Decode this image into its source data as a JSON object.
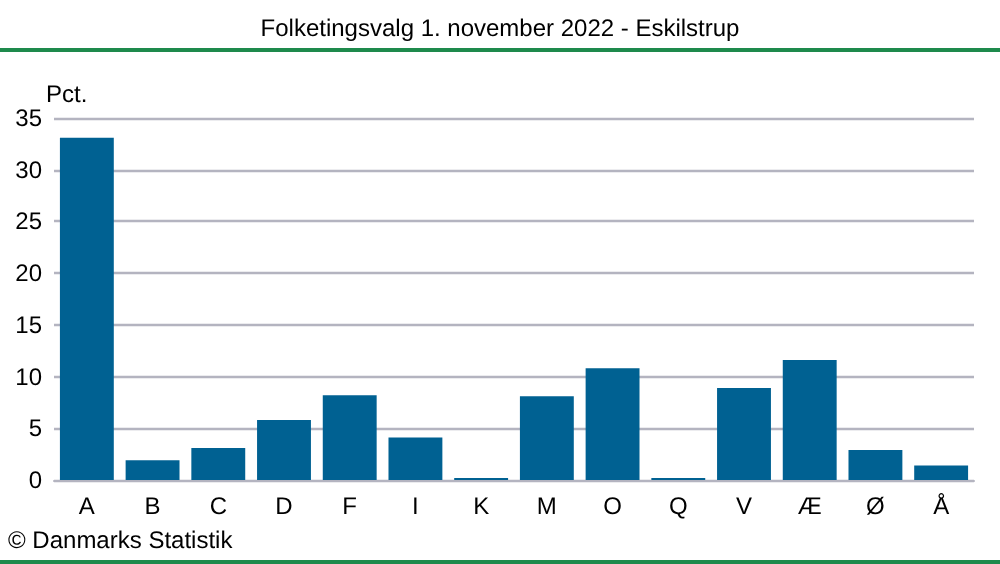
{
  "chart_data": {
    "type": "bar",
    "title": "Folketingsvalg 1. november 2022 - Eskilstrup",
    "ylabel": "Pct.",
    "categories": [
      "A",
      "B",
      "C",
      "D",
      "F",
      "I",
      "K",
      "M",
      "O",
      "Q",
      "V",
      "Æ",
      "Ø",
      "Å"
    ],
    "values": [
      33.1,
      1.9,
      3.1,
      5.8,
      8.2,
      4.1,
      0.2,
      8.1,
      10.8,
      0.2,
      8.9,
      11.6,
      2.9,
      1.4
    ],
    "color": "#006192",
    "ylim": [
      0,
      35
    ],
    "yticks": [
      0,
      5,
      10,
      15,
      20,
      25,
      30,
      35
    ],
    "grid": "y",
    "annotations": [
      "© Danmarks Statistik"
    ]
  }
}
